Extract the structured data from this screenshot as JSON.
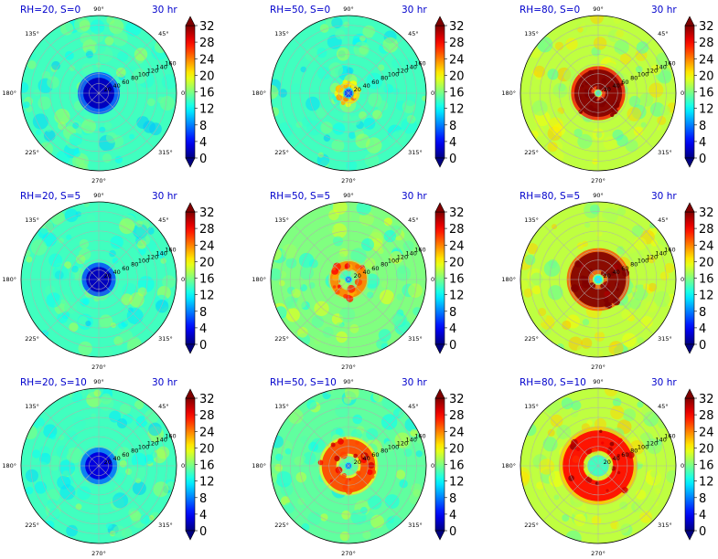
{
  "figure": {
    "colorbar": {
      "min": 0,
      "max": 32,
      "tick_labels": [
        "0",
        "4",
        "8",
        "12",
        "16",
        "20",
        "24",
        "28",
        "32"
      ],
      "colormap": "jet",
      "extend": "both",
      "colors": [
        "#00007f",
        "#0000ff",
        "#007fff",
        "#00ffff",
        "#7fff7f",
        "#ffff00",
        "#ff7f00",
        "#ff0000",
        "#7f0000"
      ]
    },
    "polar_axes": {
      "angle_labels": [
        "0°",
        "45°",
        "90°",
        "135°",
        "180°",
        "225°",
        "270°",
        "315°"
      ],
      "angles_deg": [
        0,
        45,
        90,
        135,
        180,
        225,
        270,
        315
      ],
      "radial_tick_labels": [
        "20",
        "40",
        "60",
        "80",
        "100",
        "120",
        "140",
        "160"
      ],
      "radial_ticks": [
        20,
        40,
        60,
        80,
        100,
        120,
        140,
        160
      ],
      "radial_label_angle_deg": 22.5,
      "rmax": 160,
      "grid": true
    }
  },
  "chart_data": [
    {
      "type": "heatmap",
      "projection": "polar",
      "title": "RH=20, S=0",
      "time_label": "30 hr",
      "rlim": [
        0,
        160
      ],
      "clim": [
        0,
        32
      ],
      "grid": true,
      "core_value": 2,
      "core_radius": 32,
      "ring_value": null,
      "ring_radius": null,
      "ring_width": null,
      "background_value": 14
    },
    {
      "type": "heatmap",
      "projection": "polar",
      "title": "RH=50, S=0",
      "time_label": "30 hr",
      "rlim": [
        0,
        160
      ],
      "clim": [
        0,
        32
      ],
      "grid": true,
      "core_value": 6,
      "core_radius": 8,
      "ring_value": 21,
      "ring_radius": 18,
      "ring_width": 10,
      "background_value": 14
    },
    {
      "type": "heatmap",
      "projection": "polar",
      "title": "RH=80, S=0",
      "time_label": "30 hr",
      "rlim": [
        0,
        160
      ],
      "clim": [
        0,
        32
      ],
      "grid": true,
      "core_value": 14,
      "core_radius": 6,
      "ring_value": 34,
      "ring_radius": 32,
      "ring_width": 34,
      "background_value": 18
    },
    {
      "type": "heatmap",
      "projection": "polar",
      "title": "RH=20, S=5",
      "time_label": "30 hr",
      "rlim": [
        0,
        160
      ],
      "clim": [
        0,
        32
      ],
      "grid": true,
      "core_value": 2,
      "core_radius": 26,
      "ring_value": null,
      "ring_radius": null,
      "ring_width": null,
      "background_value": 14
    },
    {
      "type": "heatmap",
      "projection": "polar",
      "title": "RH=50, S=5",
      "time_label": "30 hr",
      "rlim": [
        0,
        160
      ],
      "clim": [
        0,
        32
      ],
      "grid": true,
      "core_value": 8,
      "core_radius": 6,
      "ring_value": 24,
      "ring_radius": 30,
      "ring_width": 16,
      "background_value": 16
    },
    {
      "type": "heatmap",
      "projection": "polar",
      "title": "RH=80, S=5",
      "time_label": "30 hr",
      "rlim": [
        0,
        160
      ],
      "clim": [
        0,
        32
      ],
      "grid": true,
      "core_value": 12,
      "core_radius": 8,
      "ring_value": 32,
      "ring_radius": 38,
      "ring_width": 38,
      "background_value": 18
    },
    {
      "type": "heatmap",
      "projection": "polar",
      "title": "RH=20, S=10",
      "time_label": "30 hr",
      "rlim": [
        0,
        160
      ],
      "clim": [
        0,
        32
      ],
      "grid": true,
      "core_value": 3,
      "core_radius": 28,
      "ring_value": null,
      "ring_radius": null,
      "ring_width": null,
      "background_value": 14
    },
    {
      "type": "heatmap",
      "projection": "polar",
      "title": "RH=50, S=10",
      "time_label": "30 hr",
      "rlim": [
        0,
        160
      ],
      "clim": [
        0,
        32
      ],
      "grid": true,
      "core_value": 8,
      "core_radius": 6,
      "ring_value": 26,
      "ring_radius": 40,
      "ring_width": 30,
      "background_value": 15
    },
    {
      "type": "heatmap",
      "projection": "polar",
      "title": "RH=80, S=10",
      "time_label": "30 hr",
      "rlim": [
        0,
        160
      ],
      "clim": [
        0,
        32
      ],
      "grid": true,
      "core_value": 14,
      "core_radius": 22,
      "ring_value": 28,
      "ring_radius": 52,
      "ring_width": 42,
      "background_value": 18
    }
  ]
}
